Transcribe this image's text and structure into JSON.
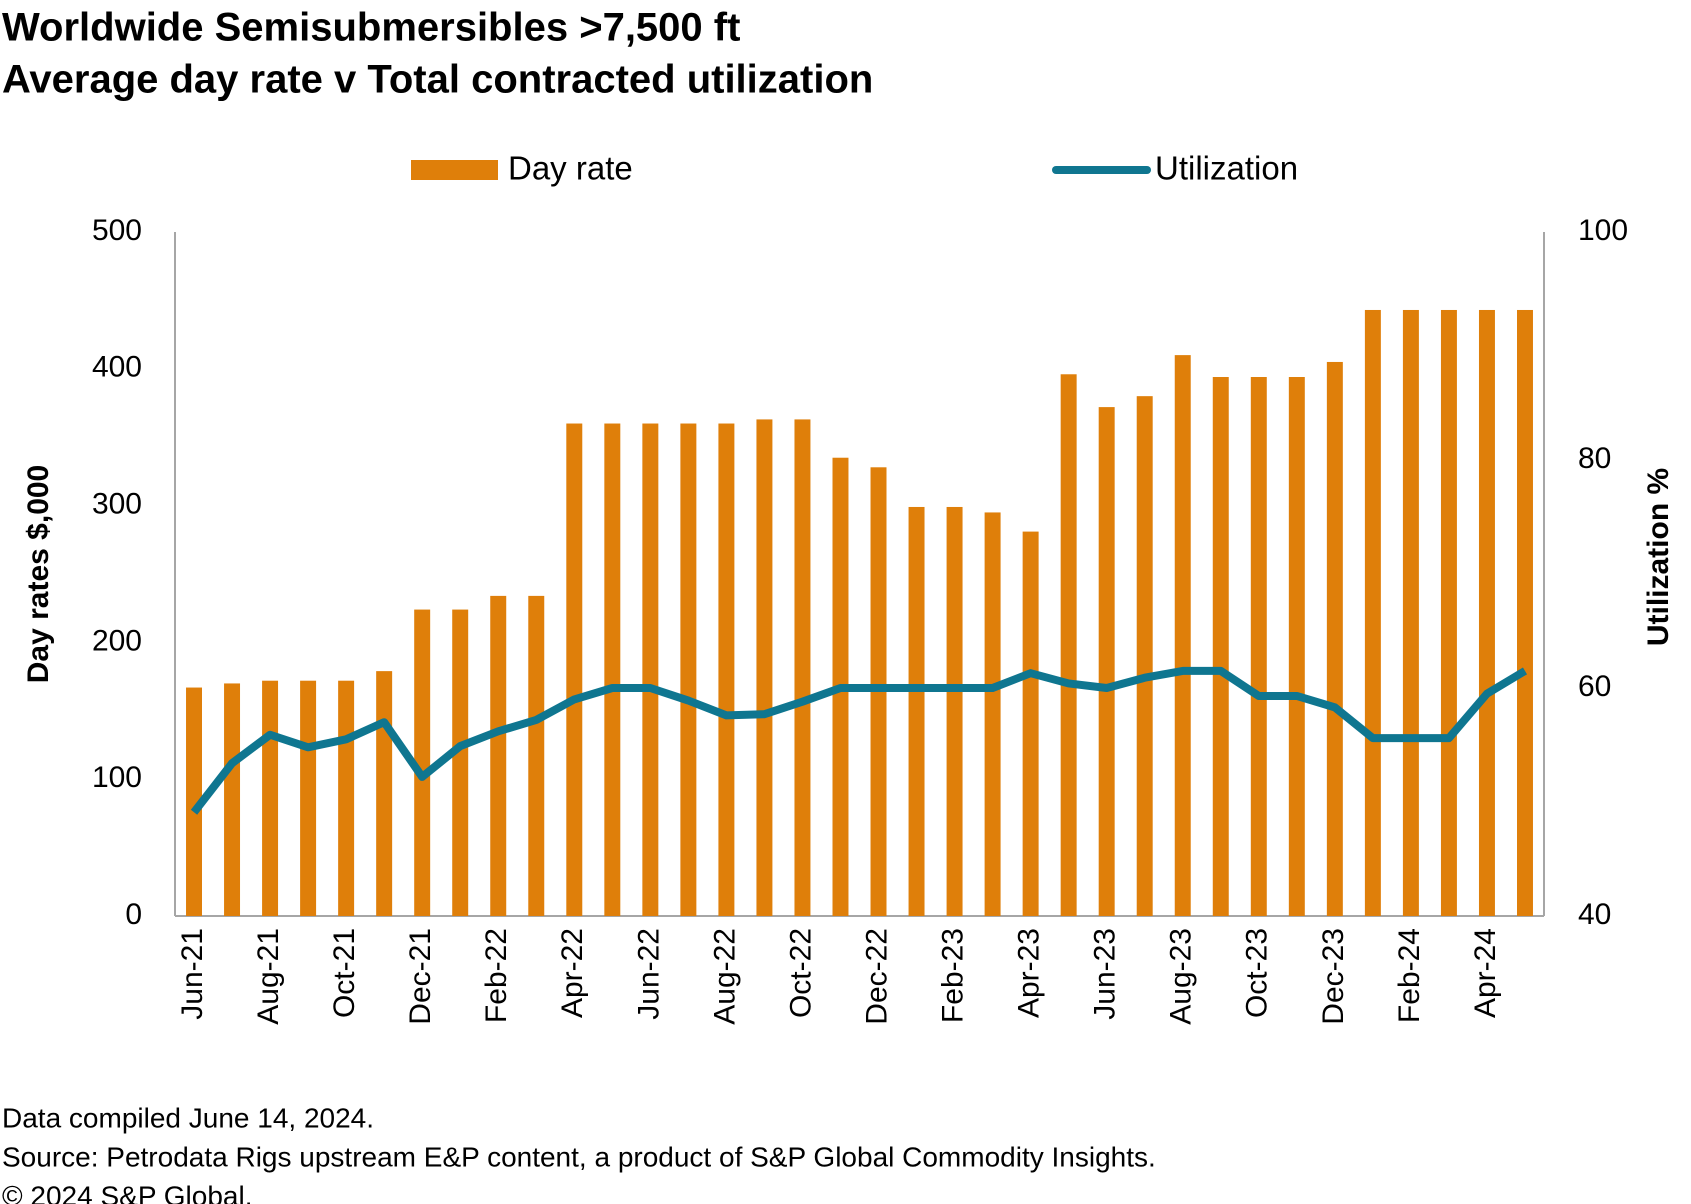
{
  "chart_data": {
    "type": "bar_line",
    "title": "Worldwide Semisubmersibles >7,500 ft",
    "subtitle": "Average day rate v Total contracted utilization",
    "y_label": "Day rates $,000",
    "y2_label": "Utilization %",
    "categories": [
      "Jun-21",
      null,
      "Aug-21",
      null,
      "Oct-21",
      null,
      "Dec-21",
      null,
      "Feb-22",
      null,
      "Apr-22",
      null,
      "Jun-22",
      null,
      "Aug-22",
      null,
      "Oct-22",
      null,
      "Dec-22",
      null,
      "Feb-23",
      null,
      "Apr-23",
      null,
      "Jun-23",
      null,
      "Aug-23",
      null,
      "Oct-23",
      null,
      "Dec-23",
      null,
      "Feb-24",
      null,
      "Apr-24",
      null
    ],
    "series": [
      {
        "name": "Day rate",
        "type": "bar",
        "color": "#df7f0a",
        "values": [
          167,
          170,
          172,
          172,
          172,
          179,
          224,
          224,
          234,
          234,
          360,
          360,
          360,
          360,
          360,
          363,
          363,
          335,
          328,
          299,
          299,
          295,
          281,
          396,
          372,
          380,
          410,
          394,
          394,
          394,
          405,
          443,
          443,
          443,
          443,
          443
        ]
      },
      {
        "name": "Utilization",
        "type": "line",
        "axis": "y2",
        "color": "#0f7690",
        "values": [
          49.1,
          53.4,
          55.9,
          54.8,
          55.5,
          57.0,
          52.2,
          54.9,
          56.2,
          57.2,
          59.0,
          60.0,
          60.0,
          58.9,
          57.6,
          57.7,
          58.8,
          60.0,
          60.0,
          60.0,
          60.0,
          60.0,
          61.3,
          60.4,
          60.0,
          60.9,
          61.5,
          61.5,
          59.3,
          59.3,
          58.3,
          55.6,
          55.6,
          55.6,
          59.5,
          61.5
        ]
      }
    ],
    "ylim": [
      0,
      500
    ],
    "yticks": [
      0,
      100,
      200,
      300,
      400,
      500
    ],
    "y2lim": [
      40,
      100
    ],
    "y2ticks": [
      40,
      60,
      80,
      100
    ],
    "notes": [
      "Data compiled June 14, 2024.",
      "Source: Petrodata Rigs upstream E&P content, a product of S&P Global Commodity Insights.",
      "© 2024 S&P Global."
    ]
  }
}
